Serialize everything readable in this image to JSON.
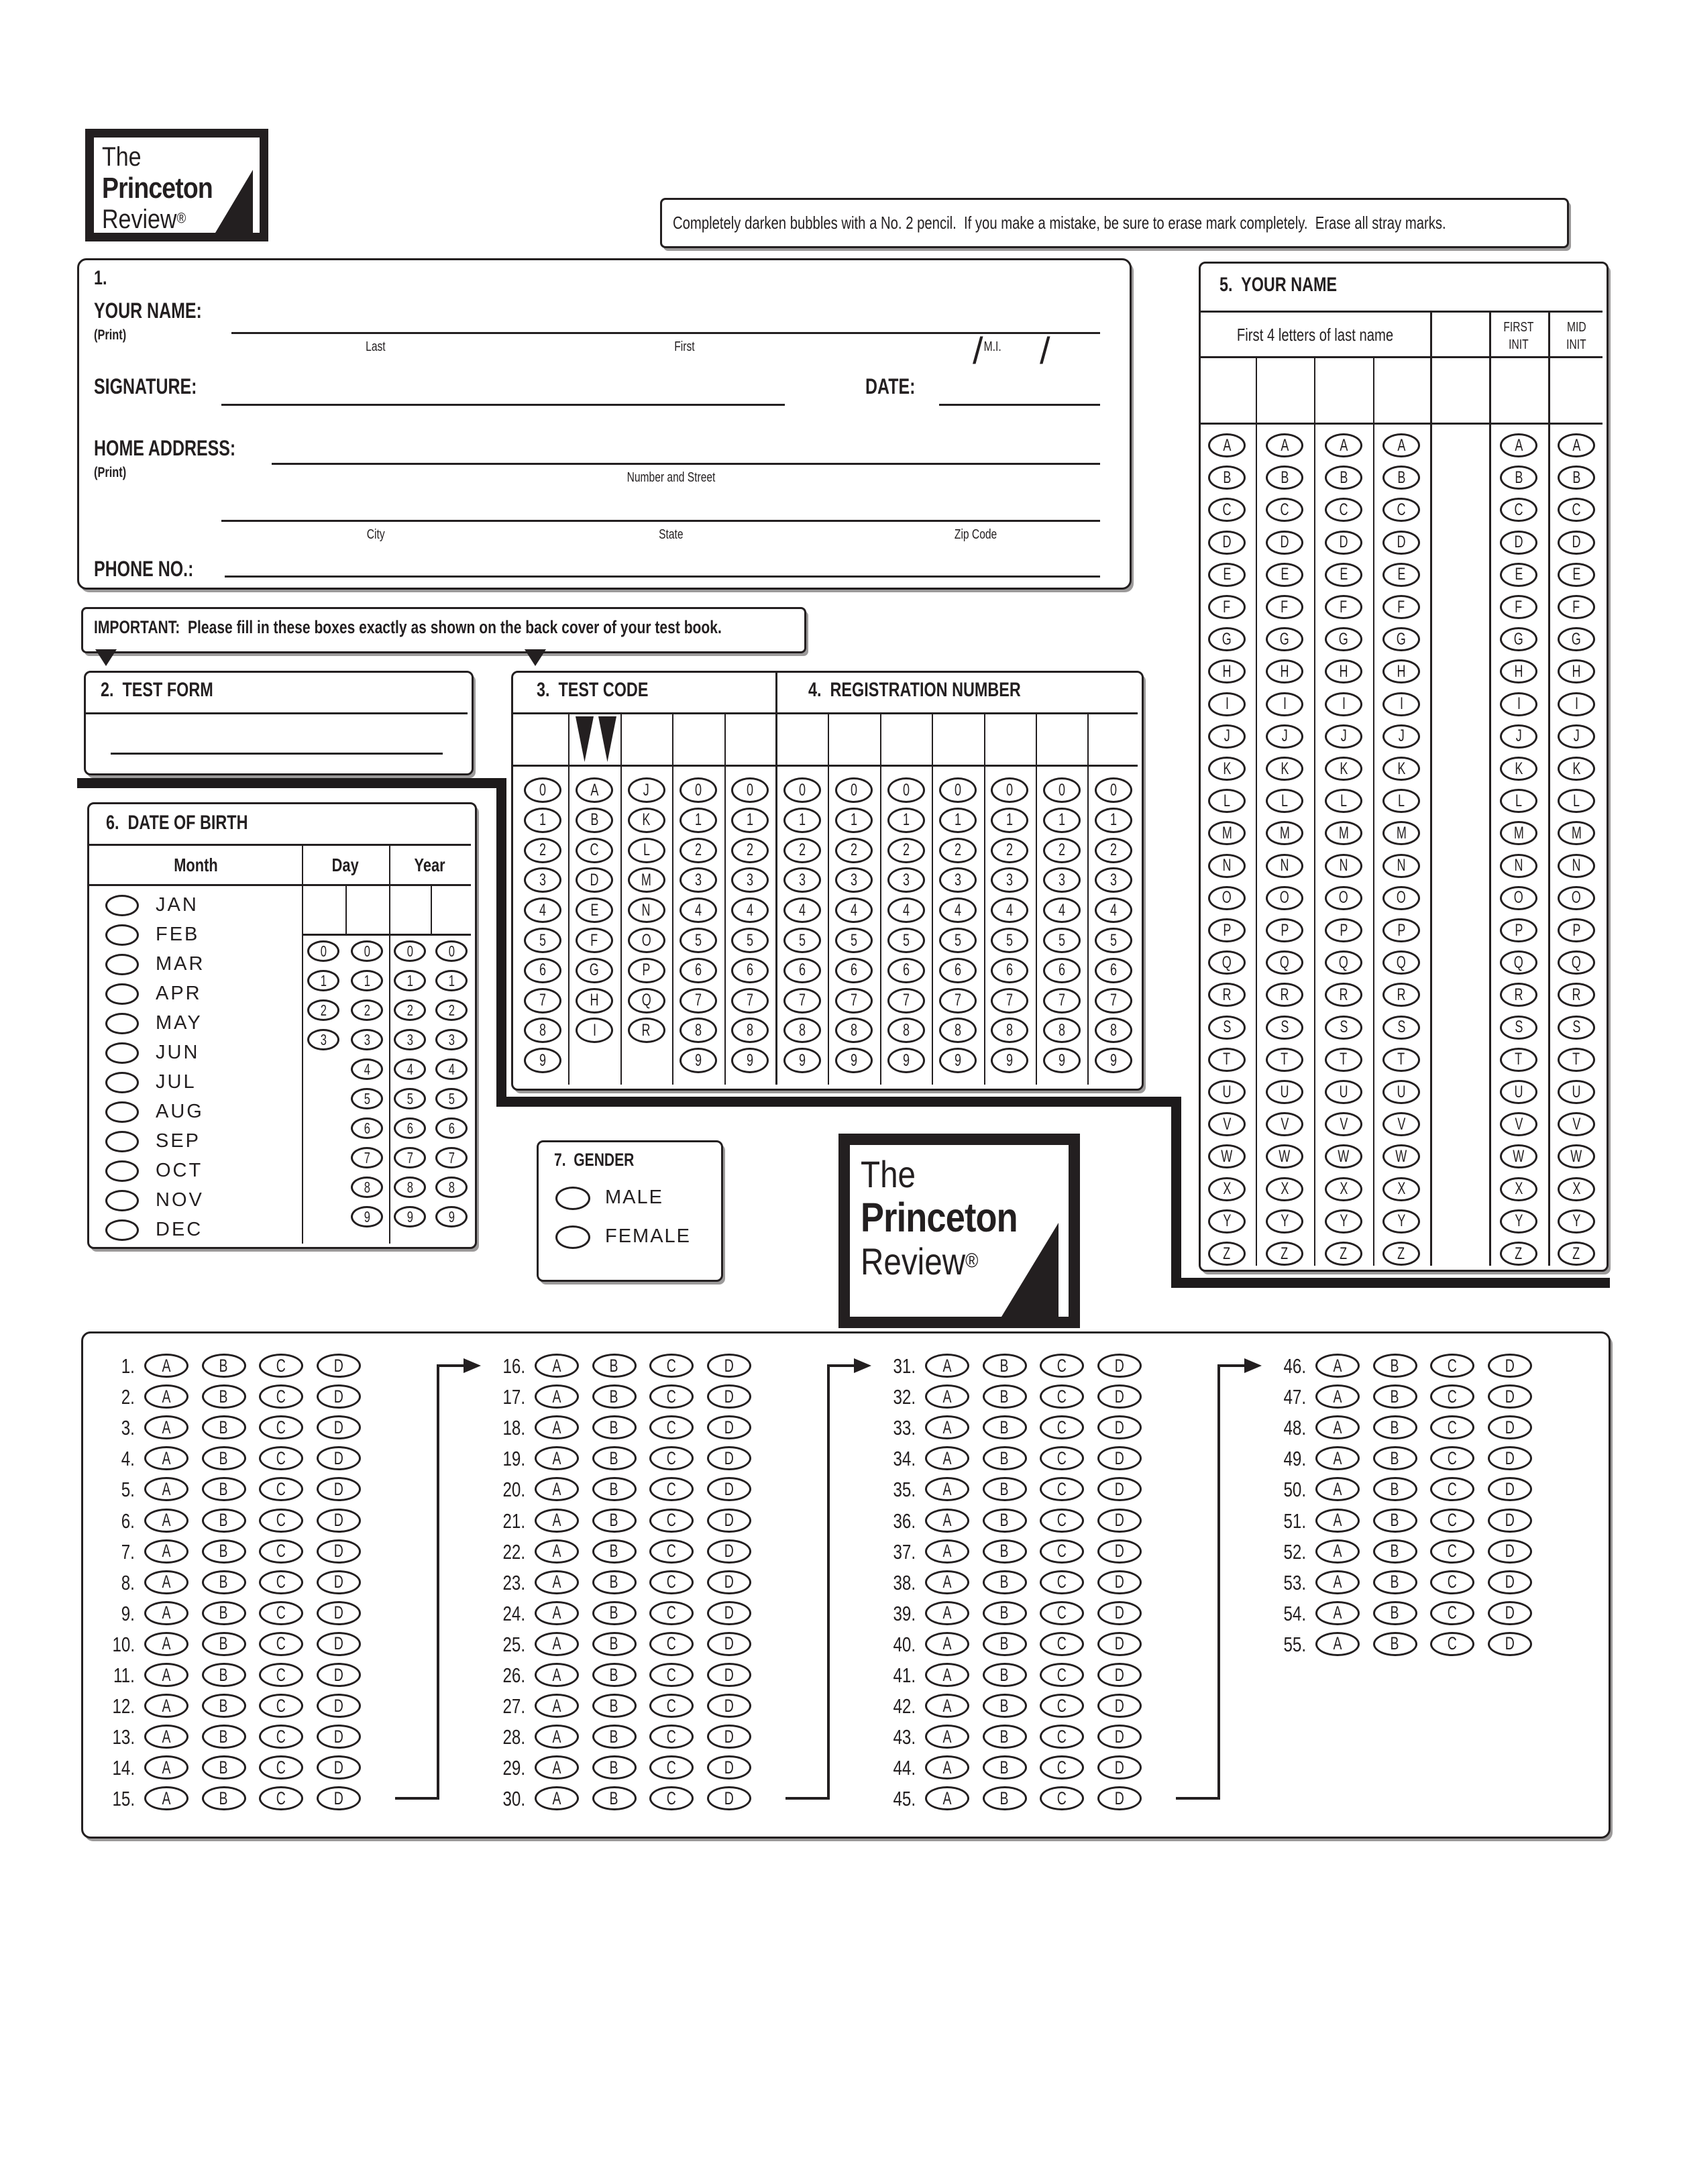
{
  "logo": {
    "line1": "The",
    "line2": "Princeton",
    "line3": "Review",
    "registered": "®"
  },
  "instruction": "Completely darken bubbles with a No. 2 pencil.  If you make a mistake, be sure to erase mark completely.  Erase all stray marks.",
  "section1": {
    "number": "1.",
    "your_name_label": "YOUR NAME:",
    "print_label": "(Print)",
    "last_label": "Last",
    "first_label": "First",
    "mi_label": "M.I.",
    "signature_label": "SIGNATURE:",
    "date_label": "DATE:",
    "slash": "/",
    "home_address_label": "HOME ADDRESS:",
    "address_print_label": "(Print)",
    "number_street_label": "Number and Street",
    "city_label": "City",
    "state_label": "State",
    "zip_label": "Zip Code",
    "phone_label": "PHONE NO.:"
  },
  "important": {
    "text": "IMPORTANT:  Please fill in these boxes exactly as shown on the back cover of your test book."
  },
  "section2": {
    "title": "2.  TEST FORM"
  },
  "section3": {
    "title": "3.  TEST CODE",
    "columns": [
      "0123456789",
      "ABCDEFGHI",
      "JKLMNOPQR",
      "0123456789",
      "0123456789"
    ]
  },
  "section4": {
    "title": "4.  REGISTRATION NUMBER",
    "digits": "0123456789",
    "column_count": 7
  },
  "section5": {
    "title": "5.  YOUR NAME",
    "subtitle": "First 4 letters of last name",
    "first_init_label": [
      "FIRST",
      "INIT"
    ],
    "mid_init_label": [
      "MID",
      "INIT"
    ],
    "alphabet": "ABCDEFGHIJKLMNOPQRSTUVWXYZ",
    "letter_column_count": 4
  },
  "section6": {
    "title": "6.  DATE OF BIRTH",
    "month_header": "Month",
    "day_header": "Day",
    "year_header": "Year",
    "months": [
      "JAN",
      "FEB",
      "MAR",
      "APR",
      "MAY",
      "JUN",
      "JUL",
      "AUG",
      "SEP",
      "OCT",
      "NOV",
      "DEC"
    ],
    "day_tens": "0123",
    "digits": "0123456789"
  },
  "section7": {
    "title": "7.  GENDER",
    "options": [
      "MALE",
      "FEMALE"
    ]
  },
  "answers": {
    "choices": "ABCD",
    "columns": [
      {
        "start": 1,
        "count": 15
      },
      {
        "start": 16,
        "count": 15
      },
      {
        "start": 31,
        "count": 15
      },
      {
        "start": 46,
        "count": 10
      }
    ]
  },
  "ink_color": "#231f20"
}
